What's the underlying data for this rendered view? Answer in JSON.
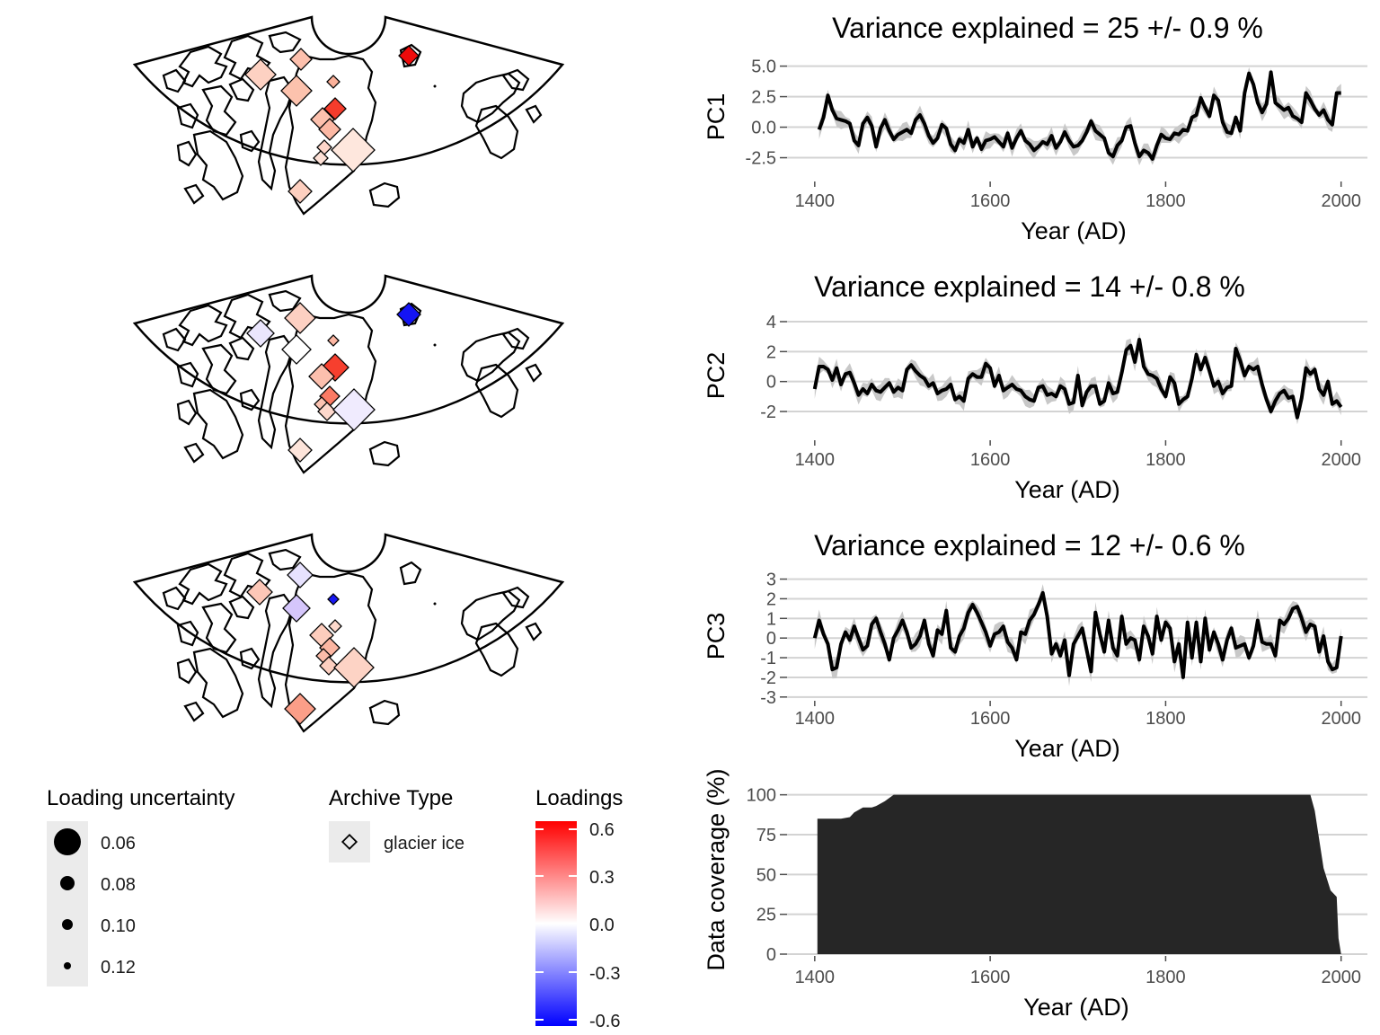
{
  "colors": {
    "positive": "#ff0000",
    "zero": "#ffffff",
    "negative": "#0000ff",
    "line": "#000000",
    "band": "#c8c8c8",
    "grid": "#d3d3d3",
    "coverage": "#262626"
  },
  "maps": [
    {
      "name": "PC1 loadings map"
    },
    {
      "name": "PC2 loadings map"
    },
    {
      "name": "PC3 loadings map"
    }
  ],
  "legends": {
    "uncertainty": {
      "title": "Loading uncertainty",
      "labels": [
        "0.06",
        "0.08",
        "0.10",
        "0.12"
      ]
    },
    "archive": {
      "title": "Archive Type",
      "labels": [
        "glacier ice"
      ]
    },
    "loadings": {
      "title": "Loadings",
      "labels": [
        "0.6",
        "0.3",
        "0.0",
        "-0.3",
        "-0.6"
      ]
    }
  },
  "chart_data": [
    {
      "type": "line",
      "title": "Variance explained = 25 +/- 0.9 %",
      "xlabel": "Year (AD)",
      "ylabel": "PC1",
      "xlim": [
        1350,
        2030
      ],
      "ylim": [
        -4.3,
        6.0
      ],
      "xticks": [
        "1400",
        "1600",
        "1800",
        "2000"
      ],
      "yticks": [
        "5.0",
        "2.5",
        "0.0",
        "-2.5"
      ],
      "ytick_values": [
        5.0,
        2.5,
        0.0,
        -2.5
      ],
      "band_halfwidth": 0.7,
      "series": [
        {
          "x": [
            1405,
            1410,
            1415,
            1420,
            1425,
            1430,
            1435,
            1440,
            1445,
            1450,
            1455,
            1460,
            1465,
            1470,
            1475,
            1480,
            1485,
            1490,
            1495,
            1500,
            1505,
            1510,
            1515,
            1520,
            1525,
            1530,
            1535,
            1540,
            1545,
            1550,
            1555,
            1560,
            1565,
            1570,
            1575,
            1580,
            1585,
            1590,
            1595,
            1600,
            1605,
            1610,
            1615,
            1620,
            1625,
            1630,
            1635,
            1640,
            1645,
            1650,
            1655,
            1660,
            1665,
            1670,
            1675,
            1680,
            1685,
            1690,
            1695,
            1700,
            1705,
            1710,
            1715,
            1720,
            1725,
            1730,
            1735,
            1740,
            1745,
            1750,
            1755,
            1760,
            1765,
            1770,
            1775,
            1780,
            1785,
            1790,
            1795,
            1800,
            1805,
            1810,
            1815,
            1820,
            1825,
            1830,
            1835,
            1840,
            1845,
            1850,
            1855,
            1860,
            1865,
            1870,
            1875,
            1880,
            1885,
            1890,
            1895,
            1900,
            1905,
            1910,
            1915,
            1920,
            1925,
            1930,
            1935,
            1940,
            1945,
            1950,
            1955,
            1960,
            1965,
            1970,
            1975,
            1980,
            1985,
            1990,
            1995,
            2000
          ],
          "y": [
            -0.2,
            0.8,
            2.6,
            1.4,
            0.7,
            0.6,
            0.5,
            0.3,
            -1.1,
            -1.5,
            0.3,
            0.8,
            0.1,
            -1.6,
            -0.1,
            0.6,
            -0.3,
            -1.0,
            -0.6,
            -0.4,
            -0.2,
            -0.5,
            0.6,
            1.0,
            0.3,
            -0.7,
            -1.3,
            -0.9,
            0.2,
            -0.1,
            -1.4,
            -1.9,
            -1.0,
            -1.3,
            -0.2,
            -1.6,
            -0.9,
            -1.8,
            -1.1,
            -1.0,
            -0.8,
            -1.2,
            -1.6,
            -0.5,
            -1.7,
            -0.9,
            -0.3,
            -1.1,
            -1.4,
            -1.9,
            -1.6,
            -1.2,
            -1.4,
            -0.7,
            -1.7,
            -1.2,
            -0.4,
            -1.1,
            -1.6,
            -1.5,
            -1.1,
            -0.4,
            0.5,
            -0.3,
            -0.6,
            -0.9,
            -2.1,
            -2.4,
            -1.5,
            -1.1,
            0.0,
            0.1,
            -1.3,
            -2.4,
            -1.9,
            -2.1,
            -2.6,
            -1.5,
            -0.6,
            -0.9,
            -1.0,
            -0.5,
            -0.6,
            -0.2,
            -0.3,
            0.8,
            1.0,
            2.4,
            1.6,
            0.9,
            2.6,
            2.2,
            0.4,
            -0.4,
            -0.5,
            0.8,
            -0.3,
            2.8,
            4.4,
            3.5,
            2.0,
            1.2,
            1.9,
            4.5,
            2.0,
            1.7,
            1.4,
            1.6,
            0.9,
            0.7,
            0.4,
            2.8,
            2.2,
            1.5,
            1.0,
            1.4,
            0.6,
            0.2,
            2.8,
            2.8
          ],
          "coverage_note": ""
        }
      ]
    },
    {
      "type": "line",
      "title": "Variance explained = 14 +/- 0.8 %",
      "xlabel": "Year (AD)",
      "ylabel": "PC2",
      "xlim": [
        1350,
        2030
      ],
      "ylim": [
        -3.8,
        4.6
      ],
      "xticks": [
        "1400",
        "1600",
        "1800",
        "2000"
      ],
      "yticks": [
        "4",
        "2",
        "0",
        "-2"
      ],
      "ytick_values": [
        4,
        2,
        0,
        -2
      ],
      "band_halfwidth": 0.6,
      "series": [
        {
          "x": [
            1400,
            1405,
            1410,
            1415,
            1420,
            1425,
            1430,
            1435,
            1440,
            1445,
            1450,
            1455,
            1460,
            1465,
            1470,
            1475,
            1480,
            1485,
            1490,
            1495,
            1500,
            1505,
            1510,
            1515,
            1520,
            1525,
            1530,
            1535,
            1540,
            1545,
            1550,
            1555,
            1560,
            1565,
            1570,
            1575,
            1580,
            1585,
            1590,
            1595,
            1600,
            1605,
            1610,
            1615,
            1620,
            1625,
            1630,
            1635,
            1640,
            1645,
            1650,
            1655,
            1660,
            1665,
            1670,
            1675,
            1680,
            1685,
            1690,
            1695,
            1700,
            1705,
            1710,
            1715,
            1720,
            1725,
            1730,
            1735,
            1740,
            1745,
            1750,
            1755,
            1760,
            1765,
            1770,
            1775,
            1780,
            1785,
            1790,
            1795,
            1800,
            1805,
            1810,
            1815,
            1820,
            1825,
            1830,
            1835,
            1840,
            1845,
            1850,
            1855,
            1860,
            1865,
            1870,
            1875,
            1880,
            1885,
            1890,
            1895,
            1900,
            1905,
            1910,
            1915,
            1920,
            1925,
            1930,
            1935,
            1940,
            1945,
            1950,
            1955,
            1960,
            1965,
            1970,
            1975,
            1980,
            1985,
            1990,
            1995,
            2000
          ],
          "y": [
            -0.5,
            1.0,
            1.0,
            0.8,
            0.1,
            0.9,
            -0.2,
            0.5,
            0.6,
            -0.1,
            -0.9,
            -0.5,
            -0.8,
            -0.2,
            -0.6,
            -0.7,
            -0.4,
            -0.1,
            -0.7,
            -0.4,
            -0.6,
            0.8,
            1.1,
            0.7,
            0.4,
            0.2,
            -0.3,
            -0.1,
            -0.8,
            -0.6,
            -0.5,
            -0.2,
            -1.2,
            -1.0,
            -1.3,
            0.2,
            0.5,
            0.3,
            0.3,
            1.2,
            0.9,
            -0.3,
            0.4,
            -0.6,
            -0.4,
            -0.2,
            -0.5,
            -0.6,
            -1.0,
            -1.2,
            -1.3,
            -0.4,
            -0.3,
            -0.9,
            -0.8,
            -1.0,
            -0.3,
            -0.5,
            -1.5,
            -1.4,
            0.4,
            -1.6,
            -0.7,
            -0.3,
            -0.3,
            -1.5,
            -1.3,
            -0.1,
            -0.8,
            -0.7,
            0.6,
            2.1,
            2.4,
            1.3,
            2.8,
            1.0,
            0.5,
            0.4,
            0.2,
            -0.5,
            -1.0,
            0.3,
            -0.1,
            -1.5,
            -1.2,
            -1.0,
            0.2,
            1.8,
            0.8,
            1.6,
            0.7,
            -0.3,
            0.0,
            -0.8,
            -0.4,
            -0.3,
            2.2,
            1.4,
            0.4,
            1.0,
            0.8,
            1.0,
            -0.2,
            -1.2,
            -2.0,
            -1.3,
            -0.8,
            -0.6,
            -1.1,
            -1.0,
            -2.4,
            -1.1,
            0.9,
            0.5,
            0.8,
            -0.5,
            -0.9,
            0.0,
            -1.5,
            -1.3,
            -1.7
          ]
        }
      ]
    },
    {
      "type": "line",
      "title": "Variance explained = 12 +/- 0.6 %",
      "xlabel": "Year (AD)",
      "ylabel": "PC3",
      "xlim": [
        1350,
        2030
      ],
      "ylim": [
        -3.1,
        3.3
      ],
      "xticks": [
        "1400",
        "1600",
        "1800",
        "2000"
      ],
      "yticks": [
        "3",
        "2",
        "1",
        "0",
        "-1",
        "-2",
        "-3"
      ],
      "ytick_values": [
        3,
        2,
        1,
        0,
        -1,
        -2,
        -3
      ],
      "band_halfwidth": 0.5,
      "series": [
        {
          "x": [
            1400,
            1405,
            1410,
            1415,
            1420,
            1425,
            1430,
            1435,
            1440,
            1445,
            1450,
            1455,
            1460,
            1465,
            1470,
            1475,
            1480,
            1485,
            1490,
            1495,
            1500,
            1505,
            1510,
            1515,
            1520,
            1525,
            1530,
            1535,
            1540,
            1545,
            1550,
            1555,
            1560,
            1565,
            1570,
            1575,
            1580,
            1585,
            1590,
            1595,
            1600,
            1605,
            1610,
            1615,
            1620,
            1625,
            1630,
            1635,
            1640,
            1645,
            1650,
            1655,
            1660,
            1665,
            1670,
            1675,
            1680,
            1685,
            1690,
            1695,
            1700,
            1705,
            1710,
            1715,
            1720,
            1725,
            1730,
            1735,
            1740,
            1745,
            1750,
            1755,
            1760,
            1765,
            1770,
            1775,
            1780,
            1785,
            1790,
            1795,
            1800,
            1805,
            1810,
            1815,
            1820,
            1825,
            1830,
            1835,
            1840,
            1845,
            1850,
            1855,
            1860,
            1865,
            1870,
            1875,
            1880,
            1885,
            1890,
            1895,
            1900,
            1905,
            1910,
            1915,
            1920,
            1925,
            1930,
            1935,
            1940,
            1945,
            1950,
            1955,
            1960,
            1965,
            1970,
            1975,
            1980,
            1985,
            1990,
            1995,
            2000
          ],
          "y": [
            0.0,
            0.9,
            0.2,
            -0.3,
            -1.6,
            -1.5,
            -0.3,
            0.3,
            -0.1,
            0.6,
            0.0,
            -0.6,
            -0.4,
            0.7,
            1.0,
            0.3,
            -0.3,
            -1.1,
            0.0,
            0.4,
            0.9,
            0.3,
            -0.5,
            -0.3,
            0.1,
            0.9,
            -0.3,
            -0.9,
            0.4,
            0.2,
            1.4,
            -0.5,
            -0.7,
            0.1,
            0.5,
            1.3,
            1.7,
            1.3,
            0.8,
            0.3,
            -0.4,
            0.2,
            0.3,
            0.6,
            -0.2,
            -0.5,
            -1.1,
            0.3,
            0.2,
            0.9,
            1.2,
            1.7,
            2.3,
            1.1,
            -0.8,
            -0.3,
            -0.9,
            -0.1,
            -1.9,
            -0.3,
            0.1,
            0.5,
            -0.6,
            -1.7,
            1.3,
            0.2,
            -0.7,
            0.9,
            -0.5,
            -0.9,
            1.1,
            -0.3,
            0.0,
            -0.1,
            -1.1,
            0.6,
            0.1,
            -0.8,
            1.1,
            -0.1,
            0.8,
            0.5,
            -1.2,
            -0.3,
            -2.0,
            0.8,
            -1.0,
            0.8,
            -1.2,
            1.0,
            -0.6,
            0.3,
            -0.3,
            -1.1,
            -0.1,
            0.5,
            -0.5,
            -0.4,
            -0.3,
            -1.0,
            -0.4,
            0.9,
            -0.2,
            -0.3,
            -0.3,
            -0.9,
            0.9,
            0.7,
            1.0,
            1.5,
            1.6,
            1.0,
            0.3,
            0.7,
            0.6,
            -0.7,
            0.1,
            -1.2,
            -1.6,
            -1.5,
            0.1
          ]
        }
      ]
    },
    {
      "type": "area",
      "title": "",
      "xlabel": "Year (AD)",
      "ylabel": "Data coverage (%)",
      "xlim": [
        1350,
        2030
      ],
      "ylim": [
        0,
        106
      ],
      "xticks": [
        "1400",
        "1600",
        "1800",
        "2000"
      ],
      "yticks": [
        "100",
        "75",
        "50",
        "25",
        "0"
      ],
      "ytick_values": [
        100,
        75,
        50,
        25,
        0
      ],
      "series": [
        {
          "x": [
            1403,
            1430,
            1440,
            1445,
            1455,
            1465,
            1470,
            1480,
            1490,
            1500,
            1960,
            1965,
            1970,
            1980,
            1988,
            1995,
            1997,
            2000
          ],
          "y": [
            85,
            85,
            86,
            89,
            92,
            92,
            93,
            96,
            100,
            100,
            100,
            100,
            90,
            54,
            40,
            36,
            10,
            0
          ]
        }
      ]
    }
  ]
}
